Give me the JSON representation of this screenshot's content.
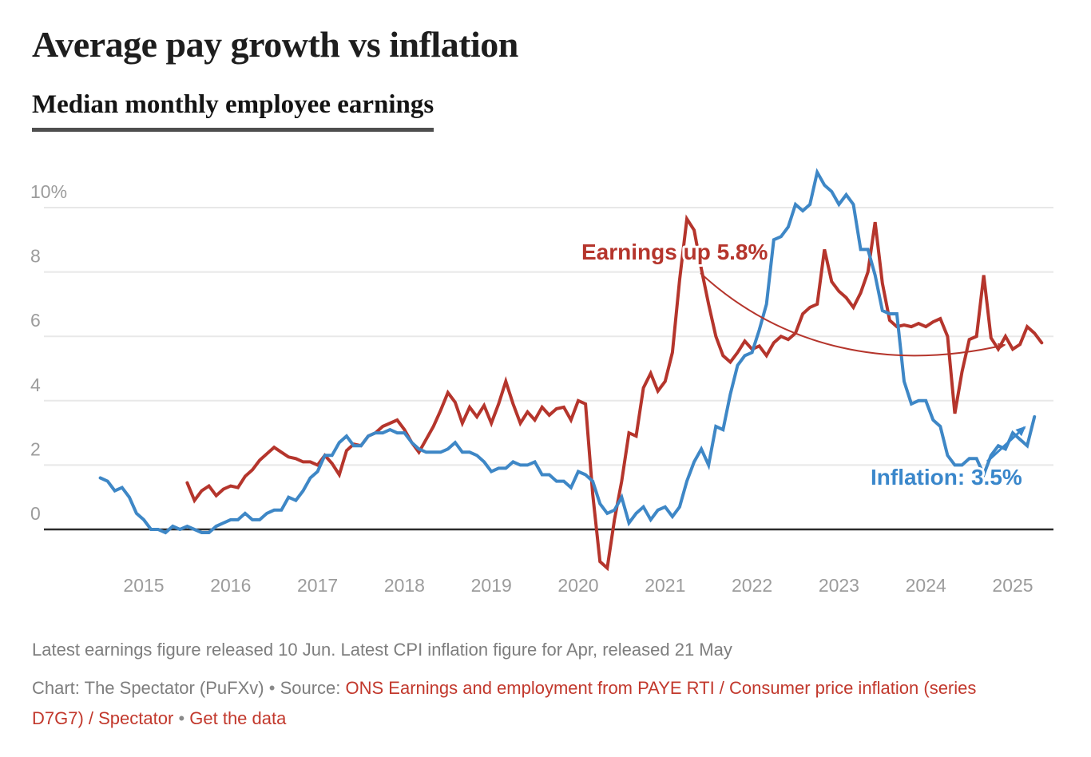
{
  "header": {
    "title": "Average pay growth vs inflation",
    "subtitle": "Median monthly employee earnings"
  },
  "chart_data": {
    "type": "line",
    "title": "Average pay growth vs inflation",
    "subtitle": "Median monthly employee earnings",
    "unit": "%",
    "grid": true,
    "legend": "direct-labels",
    "ylim": [
      -1.5,
      11.5
    ],
    "y_axis": {
      "ticks": [
        {
          "value": 0,
          "label": "0"
        },
        {
          "value": 2,
          "label": "2"
        },
        {
          "value": 4,
          "label": "4"
        },
        {
          "value": 6,
          "label": "6"
        },
        {
          "value": 8,
          "label": "8"
        },
        {
          "value": 10,
          "label": "10%"
        }
      ]
    },
    "x_axis": {
      "ticks": [
        {
          "year": 2015,
          "label": "2015"
        },
        {
          "year": 2016,
          "label": "2016"
        },
        {
          "year": 2017,
          "label": "2017"
        },
        {
          "year": 2018,
          "label": "2018"
        },
        {
          "year": 2019,
          "label": "2019"
        },
        {
          "year": 2020,
          "label": "2020"
        },
        {
          "year": 2021,
          "label": "2021"
        },
        {
          "year": 2022,
          "label": "2022"
        },
        {
          "year": 2023,
          "label": "2023"
        },
        {
          "year": 2024,
          "label": "2024"
        },
        {
          "year": 2025,
          "label": "2025"
        }
      ]
    },
    "series": [
      {
        "id": "earnings",
        "name": "Earnings (median pay growth)",
        "color": "#b5352c",
        "start": "2015-07",
        "frequency": "monthly",
        "latest_value": 5.8,
        "values": [
          1.45,
          0.9,
          1.2,
          1.35,
          1.05,
          1.25,
          1.35,
          1.3,
          1.65,
          1.85,
          2.15,
          2.35,
          2.55,
          2.4,
          2.25,
          2.2,
          2.1,
          2.1,
          2.0,
          2.3,
          2.05,
          1.7,
          2.45,
          2.65,
          2.6,
          2.9,
          3.0,
          3.2,
          3.3,
          3.4,
          3.1,
          2.7,
          2.4,
          2.8,
          3.2,
          3.7,
          4.25,
          3.95,
          3.3,
          3.8,
          3.5,
          3.85,
          3.3,
          3.9,
          4.6,
          3.9,
          3.3,
          3.65,
          3.4,
          3.8,
          3.55,
          3.75,
          3.8,
          3.4,
          4.0,
          3.9,
          1.1,
          -1.0,
          -1.2,
          0.3,
          1.5,
          3.0,
          2.9,
          4.4,
          4.85,
          4.3,
          4.6,
          5.5,
          7.75,
          9.65,
          9.3,
          8.1,
          7.0,
          6.0,
          5.4,
          5.2,
          5.5,
          5.85,
          5.6,
          5.7,
          5.4,
          5.8,
          6.0,
          5.9,
          6.1,
          6.7,
          6.9,
          7.0,
          8.7,
          7.7,
          7.4,
          7.2,
          6.9,
          7.35,
          8.0,
          9.55,
          7.65,
          6.5,
          6.3,
          6.35,
          6.3,
          6.4,
          6.3,
          6.45,
          6.55,
          6.0,
          3.6,
          4.9,
          5.9,
          6.0,
          7.9,
          5.95,
          5.6,
          6.0,
          5.6,
          5.75,
          6.3,
          6.1,
          5.8
        ]
      },
      {
        "id": "inflation",
        "name": "Inflation (CPI)",
        "color": "#3e87c6",
        "start": "2014-07",
        "frequency": "monthly",
        "latest_value": 3.5,
        "values": [
          1.6,
          1.5,
          1.2,
          1.3,
          1.0,
          0.5,
          0.3,
          0.0,
          0.0,
          -0.1,
          0.1,
          0.0,
          0.1,
          0.0,
          -0.1,
          -0.1,
          0.1,
          0.2,
          0.3,
          0.3,
          0.5,
          0.3,
          0.3,
          0.5,
          0.6,
          0.6,
          1.0,
          0.9,
          1.2,
          1.6,
          1.8,
          2.3,
          2.3,
          2.7,
          2.9,
          2.6,
          2.6,
          2.9,
          3.0,
          3.0,
          3.1,
          3.0,
          3.0,
          2.7,
          2.5,
          2.4,
          2.4,
          2.4,
          2.5,
          2.7,
          2.4,
          2.4,
          2.3,
          2.1,
          1.8,
          1.9,
          1.9,
          2.1,
          2.0,
          2.0,
          2.1,
          1.7,
          1.7,
          1.5,
          1.5,
          1.3,
          1.8,
          1.7,
          1.5,
          0.8,
          0.5,
          0.6,
          1.0,
          0.2,
          0.5,
          0.7,
          0.3,
          0.6,
          0.7,
          0.4,
          0.7,
          1.5,
          2.1,
          2.5,
          2.0,
          3.2,
          3.1,
          4.2,
          5.1,
          5.4,
          5.5,
          6.2,
          7.0,
          9.0,
          9.1,
          9.4,
          10.1,
          9.9,
          10.1,
          11.1,
          10.7,
          10.5,
          10.1,
          10.4,
          10.1,
          8.7,
          8.7,
          7.9,
          6.8,
          6.7,
          6.7,
          4.6,
          3.9,
          4.0,
          4.0,
          3.4,
          3.2,
          2.3,
          2.0,
          2.0,
          2.2,
          2.2,
          1.7,
          2.3,
          2.6,
          2.5,
          3.0,
          2.8,
          2.6,
          3.5
        ]
      }
    ],
    "annotations": [
      {
        "id": "earnings",
        "text": "Earnings up 5.8%",
        "color": "#b5352c"
      },
      {
        "id": "inflation",
        "text": "Inflation: 3.5%",
        "color": "#3a87cb"
      }
    ]
  },
  "footer": {
    "notes": "Latest earnings figure released 10 Jun. Latest CPI inflation figure for Apr, released 21 May",
    "byline": {
      "credit": "Chart: The Spectator (PuFXv)",
      "separator": "•",
      "source_label": "Source:",
      "source_links": "ONS Earnings and employment from PAYE RTI / Consumer price inflation (series D7G7) / Spectator",
      "get_data": "Get the data"
    }
  }
}
